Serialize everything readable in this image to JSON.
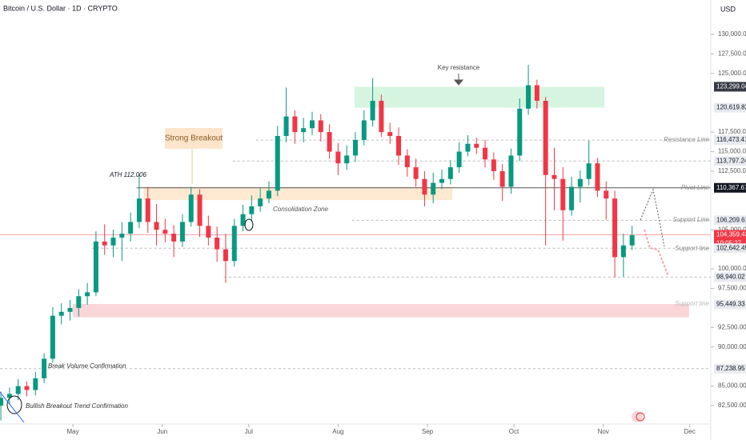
{
  "chart_data": {
    "type": "candlestick",
    "header": "Bitcoin / U.S. Dollar · 1D · CRYPTO",
    "currency": "USD",
    "up_color": "#089981",
    "down_color": "#f23645",
    "xlim": [
      -0.1,
      82.1
    ],
    "ylim": [
      80150,
      134400
    ],
    "xticks": [
      {
        "value": 8.33,
        "label": "May"
      },
      {
        "value": 18.67,
        "label": "Jun"
      },
      {
        "value": 28.67,
        "label": "Jul"
      },
      {
        "value": 39,
        "label": "Aug"
      },
      {
        "value": 49.33,
        "label": "Sep"
      },
      {
        "value": 59.33,
        "label": "Oct"
      },
      {
        "value": 69.67,
        "label": "Nov"
      },
      {
        "value": 79.67,
        "label": "Dec"
      }
    ],
    "yticks": [
      {
        "value": 82500,
        "label": "82,500.00"
      },
      {
        "value": 85000,
        "label": "85,000.00"
      },
      {
        "value": 90000,
        "label": "90,000.00"
      },
      {
        "value": 92500,
        "label": "92,500.00"
      },
      {
        "value": 97500,
        "label": "97,500.00"
      },
      {
        "value": 100000,
        "label": "100,000.00"
      },
      {
        "value": 105000,
        "label": "105,000.00"
      },
      {
        "value": 112500,
        "label": "112,500.00"
      },
      {
        "value": 115000,
        "label": "115,000.00"
      },
      {
        "value": 117500,
        "label": "117,500.00"
      },
      {
        "value": 125000,
        "label": "125,000.00"
      },
      {
        "value": 127500,
        "label": "127,500.00"
      },
      {
        "value": 130000,
        "label": "130,000.00"
      }
    ],
    "open": [
      82500,
      83500,
      84000,
      85000,
      84500,
      86000,
      88500,
      94000,
      94500,
      95000,
      96500,
      97000,
      103500,
      103000,
      104000,
      104500,
      106000,
      109000,
      106000,
      105000,
      104500,
      103500,
      106000,
      109500,
      105500,
      104000,
      102500,
      101000,
      105500,
      107000,
      108000,
      109000,
      110000,
      117000,
      119500,
      117500,
      118000,
      119000,
      117500,
      115000,
      113500,
      114500,
      116500,
      119000,
      121500,
      117500,
      117000,
      114500,
      113000,
      111500,
      109500,
      111000,
      111500,
      113000,
      115000,
      116000,
      115500,
      114000,
      112500,
      110500,
      114500,
      120500,
      123500,
      121500,
      112000,
      111500,
      107500,
      110500,
      111500,
      113500,
      110000,
      109000,
      101500,
      103000
    ],
    "high": [
      84300,
      84800,
      85900,
      85600,
      86800,
      89200,
      95100,
      95600,
      96000,
      97400,
      98200,
      104800,
      105700,
      105000,
      106000,
      107200,
      112000,
      110500,
      108300,
      106400,
      105600,
      107000,
      110500,
      110200,
      106800,
      105400,
      104500,
      106400,
      108200,
      109400,
      110300,
      111200,
      118300,
      123200,
      120300,
      119300,
      120100,
      119800,
      118500,
      116100,
      115800,
      117500,
      120300,
      124400,
      122300,
      118700,
      118100,
      115300,
      114100,
      112500,
      112300,
      112700,
      113900,
      116200,
      117100,
      116800,
      116500,
      114900,
      113400,
      115400,
      121800,
      126100,
      124200,
      122000,
      115500,
      113000,
      111800,
      112600,
      116400,
      114200,
      111200,
      110000,
      104500,
      105500
    ],
    "low": [
      80600,
      82600,
      83200,
      83700,
      83800,
      85400,
      88000,
      92900,
      93400,
      93900,
      95400,
      96500,
      101800,
      101500,
      101000,
      103500,
      105200,
      104600,
      103000,
      103400,
      101500,
      102800,
      105400,
      104100,
      103000,
      100900,
      98200,
      100300,
      104800,
      106100,
      107300,
      108400,
      109300,
      116200,
      116000,
      116200,
      117100,
      116300,
      114100,
      112000,
      112700,
      113700,
      115800,
      118200,
      116900,
      116000,
      113300,
      111800,
      110500,
      108000,
      108400,
      110200,
      110800,
      112300,
      114400,
      114700,
      113000,
      111400,
      108700,
      109600,
      113800,
      119700,
      120500,
      103000,
      107500,
      103600,
      106800,
      108500,
      110700,
      109200,
      106300,
      98900,
      99000,
      102400
    ],
    "close": [
      83500,
      84000,
      85000,
      84500,
      86000,
      88500,
      94000,
      94500,
      95000,
      96500,
      97000,
      103500,
      103000,
      104000,
      104500,
      106000,
      109000,
      106000,
      105000,
      104500,
      103500,
      106000,
      109500,
      105500,
      104000,
      102500,
      101000,
      105500,
      107000,
      108000,
      109000,
      110000,
      117000,
      119500,
      117500,
      118000,
      119000,
      117500,
      115000,
      113500,
      114500,
      116500,
      119000,
      121500,
      117500,
      117000,
      114500,
      113000,
      111500,
      109500,
      111000,
      111500,
      113000,
      115000,
      116000,
      115500,
      114000,
      112500,
      110500,
      114500,
      120500,
      123500,
      121500,
      112000,
      111500,
      107500,
      110500,
      111500,
      113500,
      110000,
      109000,
      101500,
      103000,
      104300
    ],
    "zones": [
      {
        "low": 120620,
        "high": 123300,
        "start": 40.9,
        "end": 69.8,
        "color": "#d6f5e0"
      },
      {
        "low": 108800,
        "high": 110500,
        "start": 16.5,
        "end": 52.2,
        "color": "#fde9d2"
      },
      {
        "low": 93800,
        "high": 95500,
        "start": 8.3,
        "end": 79.6,
        "color": "#fbd6d9"
      }
    ],
    "price_labels": [
      {
        "value": 123299.04,
        "label": "123,299.04",
        "style": "dark"
      },
      {
        "value": 120619.82,
        "label": "120,619.82",
        "style": "light"
      },
      {
        "value": 116473.41,
        "label": "116,473.41",
        "style": "light",
        "start": 29.5
      },
      {
        "value": 113797.24,
        "label": "113,797.24",
        "style": "light",
        "start": 26.8
      },
      {
        "value": 110367.67,
        "label": "110,367.67",
        "style": "black",
        "start": 15.7
      },
      {
        "value": 106209.61,
        "label": "106,209.61",
        "style": "light",
        "start": 40.6
      },
      {
        "value": 104359.43,
        "label": "104,359.43",
        "style": "red",
        "start": -0.1
      },
      {
        "value": 102642.45,
        "label": "102,642.45",
        "style": "light",
        "start": 10.5
      },
      {
        "value": 98940.02,
        "label": "98,940.02",
        "style": "light",
        "start": 25.8
      },
      {
        "value": 95449.33,
        "label": "95,449.33",
        "style": "light"
      },
      {
        "value": 87238.95,
        "label": "87,238.95",
        "style": "light",
        "start": -0.1
      }
    ],
    "countdown": "10:05:27",
    "annotations": [
      "Key resistance",
      "Strong Breakout",
      "ATH 112,006",
      "Consolidation Zone",
      "Resistance Line",
      "Pivot Line",
      "Support Line",
      "Support line",
      "Support line",
      "Break Volume Confirmation",
      "Bullish Breakout Trend Confirmation"
    ]
  }
}
